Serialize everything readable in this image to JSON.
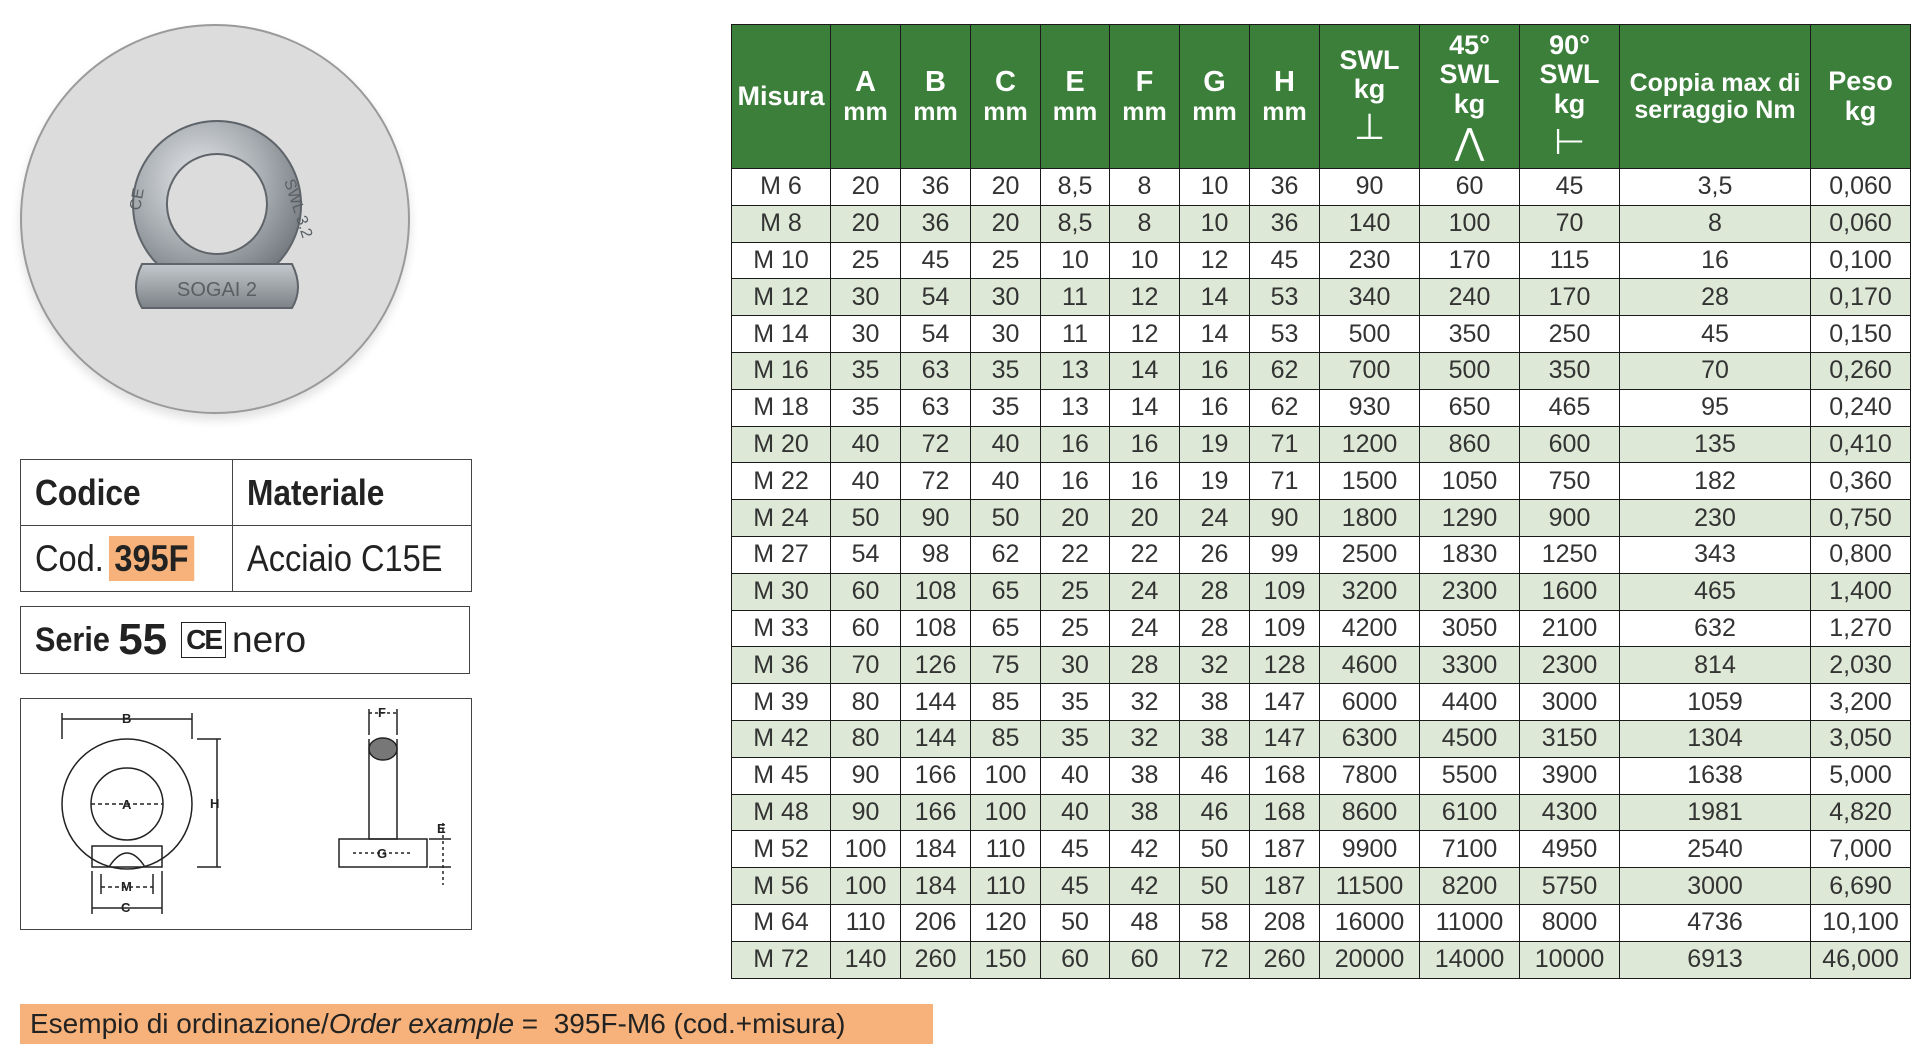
{
  "product": {
    "photo_alt": "eye-nut",
    "code_header": "Codice",
    "material_header": "Materiale",
    "code_prefix": "Cod.",
    "code_value": "395F",
    "material_value": "Acciaio C15E",
    "serie_label": "Serie",
    "serie_number": "55",
    "ce_mark": "CE",
    "serie_finish": "nero",
    "highlight_color": "#f6b27a"
  },
  "photo_markings": {
    "left": "CE",
    "right": "SWL 3.2",
    "base": "SOGAI 2"
  },
  "drawing": {
    "labels": {
      "A": "A",
      "B": "B",
      "C": "C",
      "H": "H",
      "M": "M",
      "F": "F",
      "G": "G",
      "E": "E"
    }
  },
  "table": {
    "header_color": "#3b7f3a",
    "stripe_color": "#dde9d6",
    "columns": [
      {
        "l1": "Misura",
        "l2": ""
      },
      {
        "l1": "A",
        "l2": "mm"
      },
      {
        "l1": "B",
        "l2": "mm"
      },
      {
        "l1": "C",
        "l2": "mm"
      },
      {
        "l1": "E",
        "l2": "mm"
      },
      {
        "l1": "F",
        "l2": "mm"
      },
      {
        "l1": "G",
        "l2": "mm"
      },
      {
        "l1": "H",
        "l2": "mm"
      },
      {
        "l1": "SWL",
        "l2": "kg",
        "sym": "⊥"
      },
      {
        "l0": "45°",
        "l1": "SWL",
        "l2": "kg",
        "sym": "⋀"
      },
      {
        "l0": "90°",
        "l1": "SWL",
        "l2": "kg",
        "sym": "⊢"
      },
      {
        "l1": "Coppia max di",
        "l2": "serraggio Nm"
      },
      {
        "l1": "Peso",
        "l2": "kg"
      }
    ],
    "rows": [
      [
        "M 6",
        "20",
        "36",
        "20",
        "8,5",
        "8",
        "10",
        "36",
        "90",
        "60",
        "45",
        "3,5",
        "0,060"
      ],
      [
        "M 8",
        "20",
        "36",
        "20",
        "8,5",
        "8",
        "10",
        "36",
        "140",
        "100",
        "70",
        "8",
        "0,060"
      ],
      [
        "M 10",
        "25",
        "45",
        "25",
        "10",
        "10",
        "12",
        "45",
        "230",
        "170",
        "115",
        "16",
        "0,100"
      ],
      [
        "M 12",
        "30",
        "54",
        "30",
        "11",
        "12",
        "14",
        "53",
        "340",
        "240",
        "170",
        "28",
        "0,170"
      ],
      [
        "M 14",
        "30",
        "54",
        "30",
        "11",
        "12",
        "14",
        "53",
        "500",
        "350",
        "250",
        "45",
        "0,150"
      ],
      [
        "M 16",
        "35",
        "63",
        "35",
        "13",
        "14",
        "16",
        "62",
        "700",
        "500",
        "350",
        "70",
        "0,260"
      ],
      [
        "M 18",
        "35",
        "63",
        "35",
        "13",
        "14",
        "16",
        "62",
        "930",
        "650",
        "465",
        "95",
        "0,240"
      ],
      [
        "M 20",
        "40",
        "72",
        "40",
        "16",
        "16",
        "19",
        "71",
        "1200",
        "860",
        "600",
        "135",
        "0,410"
      ],
      [
        "M 22",
        "40",
        "72",
        "40",
        "16",
        "16",
        "19",
        "71",
        "1500",
        "1050",
        "750",
        "182",
        "0,360"
      ],
      [
        "M 24",
        "50",
        "90",
        "50",
        "20",
        "20",
        "24",
        "90",
        "1800",
        "1290",
        "900",
        "230",
        "0,750"
      ],
      [
        "M 27",
        "54",
        "98",
        "62",
        "22",
        "22",
        "26",
        "99",
        "2500",
        "1830",
        "1250",
        "343",
        "0,800"
      ],
      [
        "M 30",
        "60",
        "108",
        "65",
        "25",
        "24",
        "28",
        "109",
        "3200",
        "2300",
        "1600",
        "465",
        "1,400"
      ],
      [
        "M 33",
        "60",
        "108",
        "65",
        "25",
        "24",
        "28",
        "109",
        "4200",
        "3050",
        "2100",
        "632",
        "1,270"
      ],
      [
        "M 36",
        "70",
        "126",
        "75",
        "30",
        "28",
        "32",
        "128",
        "4600",
        "3300",
        "2300",
        "814",
        "2,030"
      ],
      [
        "M 39",
        "80",
        "144",
        "85",
        "35",
        "32",
        "38",
        "147",
        "6000",
        "4400",
        "3000",
        "1059",
        "3,200"
      ],
      [
        "M 42",
        "80",
        "144",
        "85",
        "35",
        "32",
        "38",
        "147",
        "6300",
        "4500",
        "3150",
        "1304",
        "3,050"
      ],
      [
        "M 45",
        "90",
        "166",
        "100",
        "40",
        "38",
        "46",
        "168",
        "7800",
        "5500",
        "3900",
        "1638",
        "5,000"
      ],
      [
        "M 48",
        "90",
        "166",
        "100",
        "40",
        "38",
        "46",
        "168",
        "8600",
        "6100",
        "4300",
        "1981",
        "4,820"
      ],
      [
        "M 52",
        "100",
        "184",
        "110",
        "45",
        "42",
        "50",
        "187",
        "9900",
        "7100",
        "4950",
        "2540",
        "7,000"
      ],
      [
        "M 56",
        "100",
        "184",
        "110",
        "45",
        "42",
        "50",
        "187",
        "11500",
        "8200",
        "5750",
        "3000",
        "6,690"
      ],
      [
        "M 64",
        "110",
        "206",
        "120",
        "50",
        "48",
        "58",
        "208",
        "16000",
        "11000",
        "8000",
        "4736",
        "10,100"
      ],
      [
        "M 72",
        "140",
        "260",
        "150",
        "60",
        "60",
        "72",
        "260",
        "20000",
        "14000",
        "10000",
        "6913",
        "46,000"
      ]
    ]
  },
  "order_example": {
    "label_it": "Esempio di ordinazione/",
    "label_en": "Order example",
    "value": " =  395F-M6 (cod.+misura)"
  }
}
